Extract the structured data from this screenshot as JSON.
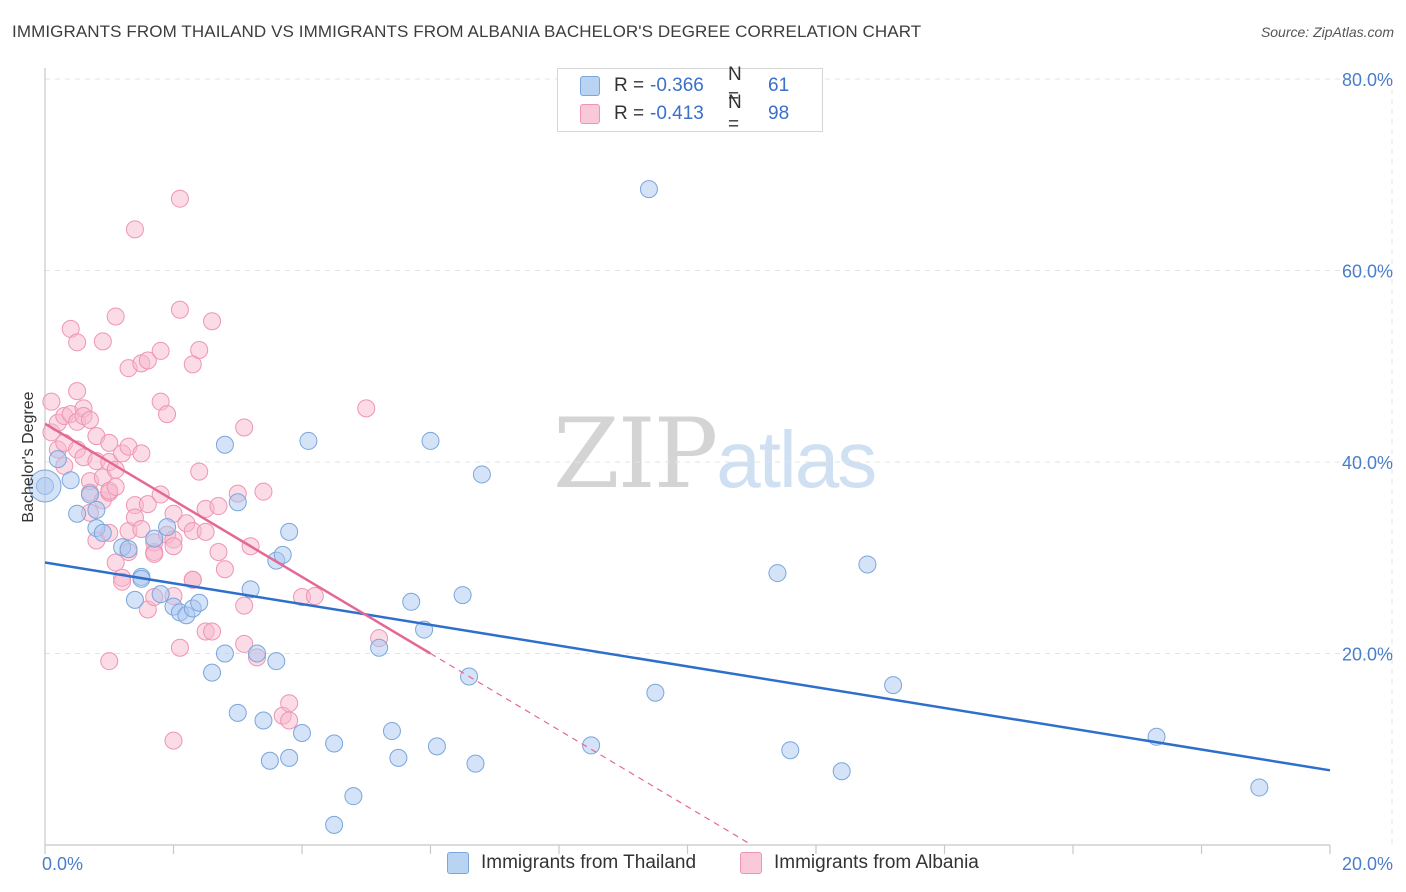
{
  "title": "IMMIGRANTS FROM THAILAND VS IMMIGRANTS FROM ALBANIA BACHELOR'S DEGREE CORRELATION CHART",
  "source": "Source: ZipAtlas.com",
  "watermark": {
    "zip": "ZIP",
    "atlas": "atlas"
  },
  "legend": {
    "r_label": "R =",
    "n_label": "N =",
    "rows": [
      {
        "r": "-0.366",
        "n": "61"
      },
      {
        "r": "-0.413",
        "n": "98"
      }
    ]
  },
  "colors": {
    "thailand_fill": "#a9c8ef",
    "thailand_stroke": "#7aa6dc",
    "thailand_line": "#2f6fcc",
    "albania_fill": "#f7b8cd",
    "albania_stroke": "#ee95b3",
    "albania_line": "#e46896",
    "tick_color": "#4a7ec9",
    "grid": "#e3e3e3"
  },
  "chart_data": {
    "type": "scatter",
    "title": "IMMIGRANTS FROM THAILAND VS IMMIGRANTS FROM ALBANIA BACHELOR'S DEGREE CORRELATION CHART",
    "xlabel": "",
    "ylabel": "Bachelor's Degree",
    "xlim": [
      0,
      20
    ],
    "ylim": [
      0,
      80
    ],
    "x_tick_labels": [
      "0.0%",
      "20.0%"
    ],
    "y_ticks": [
      20,
      40,
      60,
      80
    ],
    "y_tick_labels": [
      "20.0%",
      "40.0%",
      "60.0%",
      "80.0%"
    ],
    "series": [
      {
        "name": "Immigrants from Thailand",
        "r": -0.366,
        "n": 61,
        "trend": {
          "x0": 0,
          "y0": 29.5,
          "x1": 20,
          "y1": 7.8
        },
        "points": [
          [
            0.0,
            37.5
          ],
          [
            0.2,
            40.3
          ],
          [
            0.4,
            38.1
          ],
          [
            0.7,
            36.6
          ],
          [
            0.5,
            34.6
          ],
          [
            0.8,
            35.0
          ],
          [
            0.8,
            33.1
          ],
          [
            0.9,
            32.6
          ],
          [
            1.2,
            31.1
          ],
          [
            1.3,
            30.9
          ],
          [
            1.5,
            28.0
          ],
          [
            1.5,
            27.8
          ],
          [
            1.4,
            25.6
          ],
          [
            1.8,
            26.2
          ],
          [
            1.9,
            33.2
          ],
          [
            1.7,
            32.0
          ],
          [
            2.0,
            24.9
          ],
          [
            2.1,
            24.3
          ],
          [
            2.2,
            24.0
          ],
          [
            2.3,
            24.7
          ],
          [
            2.4,
            25.3
          ],
          [
            2.8,
            41.8
          ],
          [
            2.8,
            20.0
          ],
          [
            2.6,
            18.0
          ],
          [
            3.0,
            35.8
          ],
          [
            3.0,
            13.8
          ],
          [
            3.2,
            26.7
          ],
          [
            3.3,
            20.0
          ],
          [
            3.4,
            13.0
          ],
          [
            3.5,
            8.8
          ],
          [
            3.6,
            29.7
          ],
          [
            3.7,
            30.3
          ],
          [
            3.6,
            19.2
          ],
          [
            3.8,
            9.1
          ],
          [
            3.8,
            32.7
          ],
          [
            4.0,
            11.7
          ],
          [
            4.1,
            42.2
          ],
          [
            4.5,
            10.6
          ],
          [
            4.8,
            5.1
          ],
          [
            4.5,
            2.1
          ],
          [
            5.2,
            20.6
          ],
          [
            5.4,
            11.9
          ],
          [
            5.5,
            9.1
          ],
          [
            5.7,
            25.4
          ],
          [
            5.9,
            22.5
          ],
          [
            6.0,
            42.2
          ],
          [
            6.1,
            10.3
          ],
          [
            6.5,
            26.1
          ],
          [
            6.6,
            17.6
          ],
          [
            6.7,
            8.5
          ],
          [
            6.8,
            38.7
          ],
          [
            8.5,
            10.4
          ],
          [
            9.4,
            68.5
          ],
          [
            9.5,
            15.9
          ],
          [
            11.4,
            28.4
          ],
          [
            11.6,
            9.9
          ],
          [
            12.4,
            7.7
          ],
          [
            12.8,
            29.3
          ],
          [
            13.2,
            16.7
          ],
          [
            17.3,
            11.3
          ],
          [
            18.9,
            6.0
          ]
        ]
      },
      {
        "name": "Immigrants from Albania",
        "r": -0.413,
        "n": 98,
        "trend": {
          "x0": 0,
          "y0": 44.0,
          "x1": 6.0,
          "y1": 20.0
        },
        "trend_dashed": {
          "x0": 6.0,
          "y0": 20.0,
          "x1": 11.0,
          "y1": 0.0
        },
        "points": [
          [
            0.1,
            43.1
          ],
          [
            0.1,
            46.3
          ],
          [
            0.2,
            44.1
          ],
          [
            0.2,
            41.3
          ],
          [
            0.3,
            42.0
          ],
          [
            0.3,
            44.8
          ],
          [
            0.3,
            39.6
          ],
          [
            0.4,
            53.9
          ],
          [
            0.4,
            45.0
          ],
          [
            0.5,
            47.4
          ],
          [
            0.5,
            52.5
          ],
          [
            0.5,
            44.2
          ],
          [
            0.5,
            41.3
          ],
          [
            0.6,
            45.6
          ],
          [
            0.6,
            40.5
          ],
          [
            0.6,
            44.8
          ],
          [
            0.7,
            38.0
          ],
          [
            0.7,
            36.8
          ],
          [
            0.7,
            34.7
          ],
          [
            0.7,
            44.4
          ],
          [
            0.8,
            42.7
          ],
          [
            0.8,
            40.1
          ],
          [
            0.8,
            31.8
          ],
          [
            0.9,
            52.6
          ],
          [
            0.9,
            38.4
          ],
          [
            0.9,
            36.0
          ],
          [
            1.0,
            42.0
          ],
          [
            1.0,
            40.0
          ],
          [
            1.0,
            36.8
          ],
          [
            1.0,
            19.2
          ],
          [
            1.0,
            32.6
          ],
          [
            1.0,
            37.0
          ],
          [
            1.1,
            55.2
          ],
          [
            1.1,
            39.2
          ],
          [
            1.1,
            37.4
          ],
          [
            1.1,
            29.5
          ],
          [
            1.2,
            27.9
          ],
          [
            1.2,
            27.5
          ],
          [
            1.2,
            40.9
          ],
          [
            1.3,
            41.6
          ],
          [
            1.3,
            49.8
          ],
          [
            1.3,
            32.8
          ],
          [
            1.3,
            30.6
          ],
          [
            1.4,
            64.3
          ],
          [
            1.4,
            35.5
          ],
          [
            1.4,
            34.2
          ],
          [
            1.5,
            50.3
          ],
          [
            1.5,
            40.9
          ],
          [
            1.5,
            33.0
          ],
          [
            1.6,
            50.6
          ],
          [
            1.6,
            35.6
          ],
          [
            1.6,
            24.6
          ],
          [
            1.7,
            30.6
          ],
          [
            1.7,
            31.6
          ],
          [
            1.7,
            30.4
          ],
          [
            1.7,
            25.9
          ],
          [
            1.8,
            51.6
          ],
          [
            1.8,
            46.3
          ],
          [
            1.8,
            36.6
          ],
          [
            1.9,
            45.0
          ],
          [
            1.9,
            32.4
          ],
          [
            2.0,
            10.9
          ],
          [
            2.0,
            34.6
          ],
          [
            2.0,
            31.9
          ],
          [
            2.0,
            26.0
          ],
          [
            2.0,
            31.2
          ],
          [
            2.1,
            67.5
          ],
          [
            2.1,
            55.9
          ],
          [
            2.2,
            33.6
          ],
          [
            2.3,
            27.7
          ],
          [
            2.3,
            27.7
          ],
          [
            2.3,
            50.2
          ],
          [
            2.3,
            32.8
          ],
          [
            2.4,
            39.0
          ],
          [
            2.4,
            51.7
          ],
          [
            2.5,
            22.3
          ],
          [
            2.5,
            35.1
          ],
          [
            2.5,
            32.7
          ],
          [
            2.6,
            54.7
          ],
          [
            2.6,
            22.3
          ],
          [
            2.7,
            35.4
          ],
          [
            2.7,
            30.6
          ],
          [
            2.8,
            28.8
          ],
          [
            3.0,
            36.7
          ],
          [
            3.1,
            21.0
          ],
          [
            3.1,
            25.0
          ],
          [
            3.1,
            43.6
          ],
          [
            3.2,
            31.2
          ],
          [
            3.3,
            19.6
          ],
          [
            3.4,
            36.9
          ],
          [
            3.7,
            13.5
          ],
          [
            3.8,
            14.8
          ],
          [
            3.8,
            13.0
          ],
          [
            4.0,
            25.9
          ],
          [
            4.2,
            26.0
          ],
          [
            5.0,
            45.6
          ],
          [
            5.2,
            21.6
          ],
          [
            2.1,
            20.6
          ]
        ]
      }
    ]
  }
}
